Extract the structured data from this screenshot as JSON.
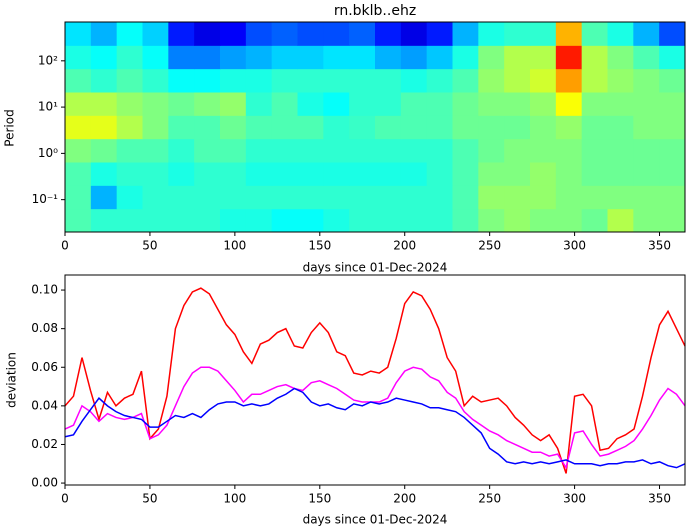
{
  "chart_data": [
    {
      "type": "heatmap",
      "title": "rn.bklb..ehz",
      "xlabel": "days since 01-Dec-2024",
      "ylabel": "Period",
      "colormap": "jet",
      "yscale": "log",
      "xlim": [
        0,
        365
      ],
      "xticks": [
        0,
        50,
        100,
        150,
        200,
        250,
        300,
        350
      ],
      "ylim": [
        0.02,
        690
      ],
      "yticks": [
        {
          "value": 0.1,
          "label": "10⁻¹"
        },
        {
          "value": 1,
          "label": "10⁰"
        },
        {
          "value": 10,
          "label": "10¹"
        },
        {
          "value": 100,
          "label": "10²"
        }
      ],
      "z": [
        [
          0.45,
          0.42,
          0.42,
          0.42,
          0.42,
          0.42,
          0.4,
          0.4,
          0.38,
          0.38,
          0.4,
          0.42,
          0.42,
          0.42,
          0.42,
          0.45,
          0.5,
          0.52,
          0.5,
          0.5,
          0.48,
          0.55,
          0.5,
          0.5
        ],
        [
          0.45,
          0.3,
          0.4,
          0.42,
          0.42,
          0.42,
          0.42,
          0.42,
          0.42,
          0.42,
          0.42,
          0.42,
          0.42,
          0.42,
          0.42,
          0.45,
          0.52,
          0.52,
          0.52,
          0.5,
          0.5,
          0.5,
          0.5,
          0.5
        ],
        [
          0.45,
          0.4,
          0.42,
          0.42,
          0.4,
          0.42,
          0.42,
          0.4,
          0.4,
          0.4,
          0.4,
          0.4,
          0.4,
          0.4,
          0.42,
          0.45,
          0.5,
          0.5,
          0.52,
          0.5,
          0.48,
          0.48,
          0.48,
          0.48
        ],
        [
          0.5,
          0.48,
          0.45,
          0.45,
          0.42,
          0.45,
          0.45,
          0.42,
          0.42,
          0.42,
          0.42,
          0.42,
          0.42,
          0.42,
          0.42,
          0.45,
          0.48,
          0.5,
          0.5,
          0.5,
          0.48,
          0.48,
          0.48,
          0.48
        ],
        [
          0.6,
          0.6,
          0.55,
          0.5,
          0.45,
          0.45,
          0.48,
          0.45,
          0.45,
          0.45,
          0.42,
          0.43,
          0.45,
          0.45,
          0.45,
          0.48,
          0.48,
          0.48,
          0.5,
          0.52,
          0.48,
          0.48,
          0.5,
          0.5
        ],
        [
          0.55,
          0.55,
          0.52,
          0.5,
          0.48,
          0.5,
          0.52,
          0.42,
          0.45,
          0.4,
          0.38,
          0.42,
          0.42,
          0.45,
          0.45,
          0.48,
          0.5,
          0.5,
          0.52,
          0.62,
          0.5,
          0.5,
          0.5,
          0.5
        ],
        [
          0.45,
          0.42,
          0.45,
          0.42,
          0.38,
          0.38,
          0.4,
          0.4,
          0.42,
          0.42,
          0.42,
          0.42,
          0.42,
          0.4,
          0.42,
          0.45,
          0.52,
          0.55,
          0.58,
          0.72,
          0.55,
          0.52,
          0.5,
          0.48
        ],
        [
          0.4,
          0.38,
          0.42,
          0.38,
          0.25,
          0.25,
          0.28,
          0.3,
          0.33,
          0.33,
          0.35,
          0.35,
          0.3,
          0.28,
          0.32,
          0.4,
          0.5,
          0.55,
          0.55,
          0.85,
          0.55,
          0.5,
          0.45,
          0.4
        ],
        [
          0.35,
          0.3,
          0.38,
          0.33,
          0.15,
          0.1,
          0.12,
          0.2,
          0.22,
          0.2,
          0.2,
          0.22,
          0.15,
          0.1,
          0.15,
          0.3,
          0.4,
          0.42,
          0.42,
          0.7,
          0.45,
          0.4,
          0.3,
          0.2
        ]
      ]
    },
    {
      "type": "line",
      "xlabel": "days since 01-Dec-2024",
      "ylabel": "deviation",
      "xlim": [
        0,
        365
      ],
      "xticks": [
        0,
        50,
        100,
        150,
        200,
        250,
        300,
        350
      ],
      "ylim": [
        -0.001,
        0.1078
      ],
      "yticks": [
        {
          "value": 0,
          "label": "0.00"
        },
        {
          "value": 0.02,
          "label": "0.02"
        },
        {
          "value": 0.04,
          "label": "0.04"
        },
        {
          "value": 0.06,
          "label": "0.06"
        },
        {
          "value": 0.08,
          "label": "0.08"
        },
        {
          "value": 0.1,
          "label": "0.10"
        }
      ],
      "x": [
        0,
        5,
        10,
        15,
        20,
        25,
        30,
        35,
        40,
        45,
        50,
        55,
        60,
        65,
        70,
        75,
        80,
        85,
        90,
        95,
        100,
        105,
        110,
        115,
        120,
        125,
        130,
        135,
        140,
        145,
        150,
        155,
        160,
        165,
        170,
        175,
        180,
        185,
        190,
        195,
        200,
        205,
        210,
        215,
        220,
        225,
        230,
        235,
        240,
        245,
        250,
        255,
        260,
        265,
        270,
        275,
        280,
        285,
        290,
        295,
        300,
        305,
        310,
        315,
        320,
        325,
        330,
        335,
        340,
        345,
        350,
        355,
        360,
        365
      ],
      "series": [
        {
          "color": "#ff0000",
          "values": [
            0.04,
            0.045,
            0.065,
            0.048,
            0.033,
            0.047,
            0.04,
            0.044,
            0.046,
            0.058,
            0.023,
            0.028,
            0.045,
            0.08,
            0.092,
            0.099,
            0.101,
            0.098,
            0.09,
            0.082,
            0.077,
            0.068,
            0.062,
            0.072,
            0.074,
            0.078,
            0.08,
            0.071,
            0.07,
            0.078,
            0.083,
            0.078,
            0.068,
            0.066,
            0.057,
            0.056,
            0.058,
            0.057,
            0.06,
            0.075,
            0.093,
            0.099,
            0.097,
            0.09,
            0.08,
            0.065,
            0.058,
            0.04,
            0.045,
            0.042,
            0.043,
            0.044,
            0.04,
            0.034,
            0.03,
            0.025,
            0.022,
            0.025,
            0.018,
            0.005,
            0.045,
            0.046,
            0.04,
            0.017,
            0.018,
            0.023,
            0.025,
            0.028,
            0.045,
            0.065,
            0.082,
            0.089,
            0.08,
            0.071
          ]
        },
        {
          "color": "#ff00ff",
          "values": [
            0.028,
            0.03,
            0.04,
            0.037,
            0.032,
            0.036,
            0.034,
            0.033,
            0.034,
            0.036,
            0.023,
            0.025,
            0.03,
            0.04,
            0.05,
            0.057,
            0.06,
            0.06,
            0.058,
            0.053,
            0.048,
            0.042,
            0.046,
            0.046,
            0.048,
            0.05,
            0.051,
            0.049,
            0.048,
            0.052,
            0.053,
            0.051,
            0.049,
            0.046,
            0.043,
            0.042,
            0.042,
            0.042,
            0.044,
            0.052,
            0.058,
            0.06,
            0.059,
            0.055,
            0.053,
            0.047,
            0.044,
            0.037,
            0.033,
            0.03,
            0.027,
            0.025,
            0.022,
            0.02,
            0.018,
            0.016,
            0.016,
            0.014,
            0.015,
            0.008,
            0.026,
            0.027,
            0.02,
            0.014,
            0.015,
            0.017,
            0.019,
            0.022,
            0.028,
            0.035,
            0.043,
            0.049,
            0.046,
            0.04
          ]
        },
        {
          "color": "#0000ff",
          "values": [
            0.024,
            0.025,
            0.032,
            0.038,
            0.044,
            0.04,
            0.037,
            0.035,
            0.034,
            0.033,
            0.029,
            0.029,
            0.032,
            0.035,
            0.034,
            0.036,
            0.034,
            0.038,
            0.041,
            0.042,
            0.042,
            0.04,
            0.041,
            0.04,
            0.041,
            0.044,
            0.046,
            0.049,
            0.047,
            0.042,
            0.04,
            0.041,
            0.039,
            0.038,
            0.041,
            0.04,
            0.042,
            0.041,
            0.042,
            0.044,
            0.043,
            0.042,
            0.041,
            0.039,
            0.039,
            0.038,
            0.037,
            0.034,
            0.03,
            0.026,
            0.018,
            0.015,
            0.011,
            0.01,
            0.011,
            0.01,
            0.011,
            0.01,
            0.011,
            0.012,
            0.01,
            0.01,
            0.01,
            0.009,
            0.01,
            0.01,
            0.011,
            0.011,
            0.012,
            0.01,
            0.011,
            0.009,
            0.008,
            0.01
          ]
        }
      ]
    }
  ]
}
